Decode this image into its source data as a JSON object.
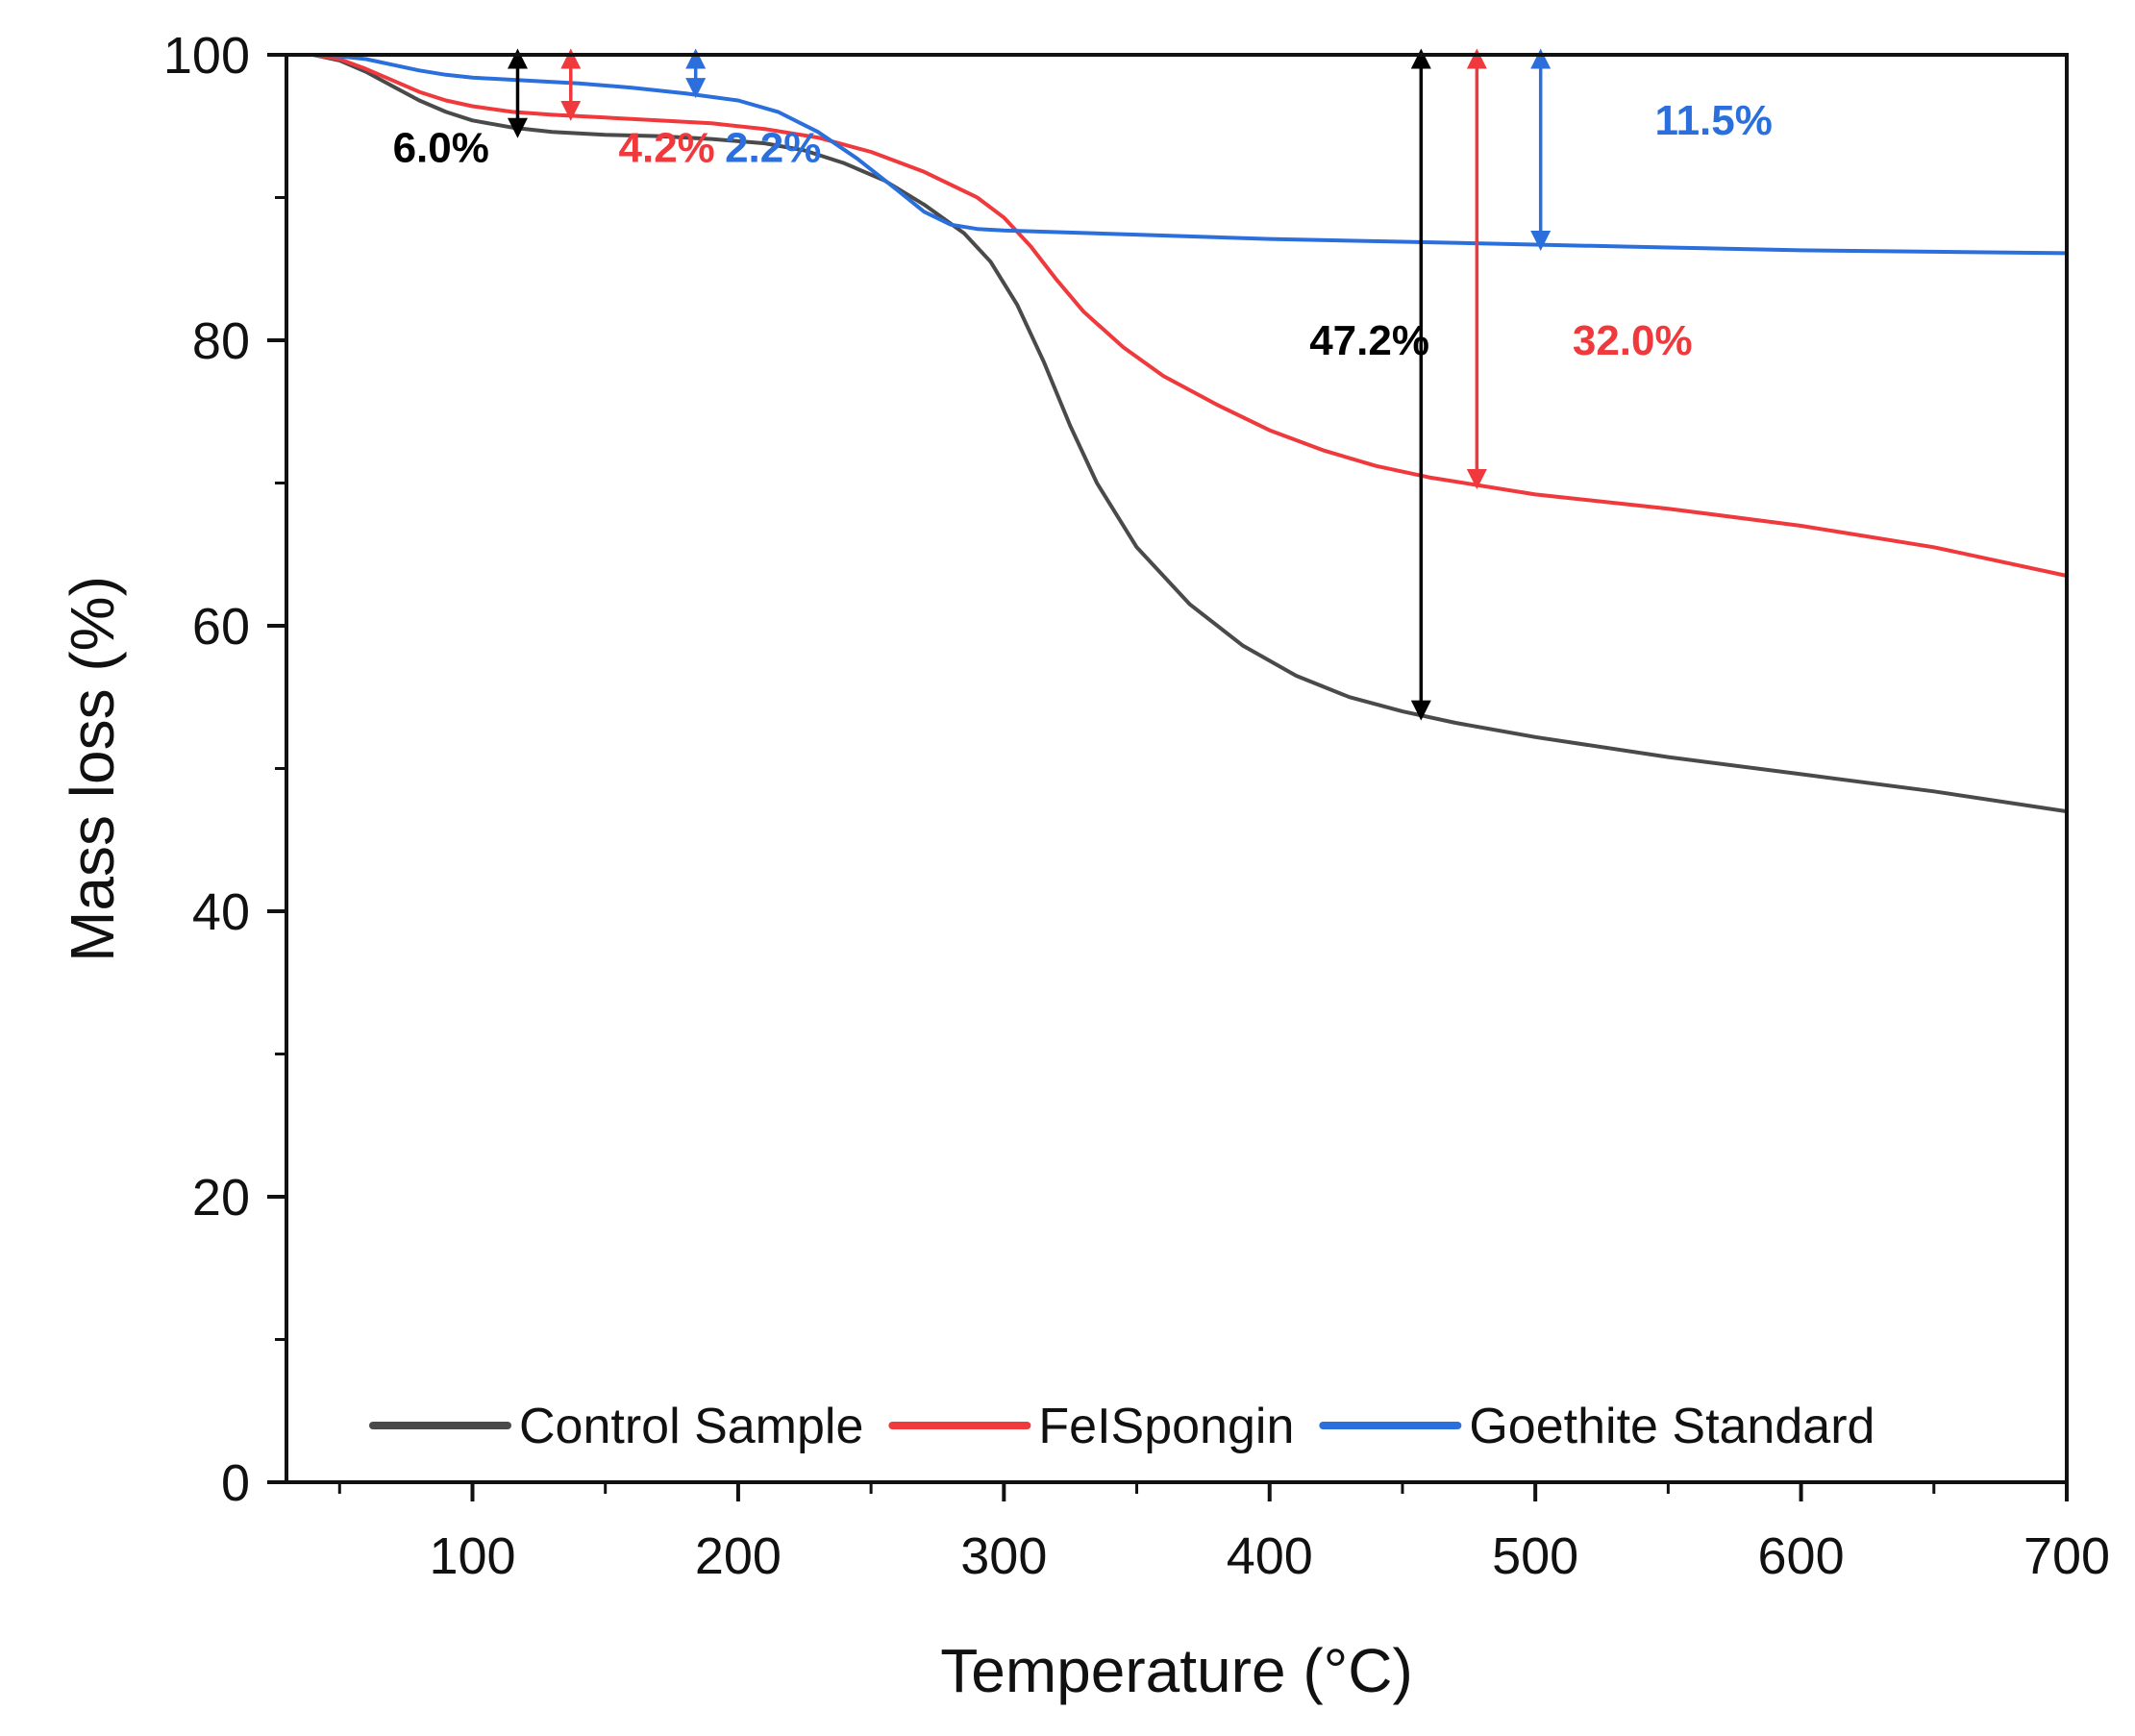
{
  "chart_data": {
    "type": "line",
    "title": "",
    "xlabel": "Temperature (°C)",
    "ylabel": "Mass loss (%)",
    "xlim": [
      30,
      700
    ],
    "ylim": [
      0,
      100
    ],
    "x_ticks": [
      100,
      200,
      300,
      400,
      500,
      600,
      700
    ],
    "x_minor_ticks": [
      50,
      150,
      250,
      350,
      450,
      550,
      650
    ],
    "y_ticks": [
      0,
      20,
      40,
      60,
      80,
      100
    ],
    "y_minor_ticks": [
      10,
      30,
      50,
      70,
      90
    ],
    "legend_position": "bottom",
    "series": [
      {
        "name": "Control Sample",
        "color": "#4a4a4a",
        "points": [
          [
            30,
            100
          ],
          [
            40,
            100
          ],
          [
            50,
            99.6
          ],
          [
            60,
            98.8
          ],
          [
            70,
            97.8
          ],
          [
            80,
            96.8
          ],
          [
            90,
            96.0
          ],
          [
            100,
            95.4
          ],
          [
            115,
            94.9
          ],
          [
            130,
            94.6
          ],
          [
            150,
            94.4
          ],
          [
            170,
            94.3
          ],
          [
            190,
            94.1
          ],
          [
            210,
            93.8
          ],
          [
            225,
            93.3
          ],
          [
            240,
            92.4
          ],
          [
            255,
            91.2
          ],
          [
            270,
            89.5
          ],
          [
            285,
            87.5
          ],
          [
            295,
            85.5
          ],
          [
            305,
            82.5
          ],
          [
            315,
            78.5
          ],
          [
            325,
            74.0
          ],
          [
            335,
            70.0
          ],
          [
            350,
            65.5
          ],
          [
            370,
            61.5
          ],
          [
            390,
            58.6
          ],
          [
            410,
            56.5
          ],
          [
            430,
            55.0
          ],
          [
            450,
            54.0
          ],
          [
            470,
            53.2
          ],
          [
            500,
            52.2
          ],
          [
            550,
            50.8
          ],
          [
            600,
            49.6
          ],
          [
            650,
            48.4
          ],
          [
            700,
            47.0
          ]
        ]
      },
      {
        "name": "FeISpongin",
        "color": "#f0393c",
        "points": [
          [
            30,
            100
          ],
          [
            40,
            100
          ],
          [
            50,
            99.7
          ],
          [
            60,
            99.0
          ],
          [
            70,
            98.2
          ],
          [
            80,
            97.4
          ],
          [
            90,
            96.8
          ],
          [
            100,
            96.4
          ],
          [
            115,
            96.0
          ],
          [
            130,
            95.8
          ],
          [
            150,
            95.6
          ],
          [
            170,
            95.4
          ],
          [
            190,
            95.2
          ],
          [
            210,
            94.8
          ],
          [
            230,
            94.2
          ],
          [
            250,
            93.2
          ],
          [
            270,
            91.8
          ],
          [
            290,
            90.0
          ],
          [
            300,
            88.6
          ],
          [
            310,
            86.6
          ],
          [
            320,
            84.2
          ],
          [
            330,
            82.0
          ],
          [
            345,
            79.5
          ],
          [
            360,
            77.5
          ],
          [
            380,
            75.5
          ],
          [
            400,
            73.7
          ],
          [
            420,
            72.3
          ],
          [
            440,
            71.2
          ],
          [
            460,
            70.4
          ],
          [
            480,
            69.8
          ],
          [
            500,
            69.2
          ],
          [
            550,
            68.2
          ],
          [
            600,
            67.0
          ],
          [
            650,
            65.5
          ],
          [
            700,
            63.5
          ]
        ]
      },
      {
        "name": "Goethite Standard",
        "color": "#2a6fdb",
        "points": [
          [
            30,
            100
          ],
          [
            40,
            100
          ],
          [
            50,
            99.9
          ],
          [
            60,
            99.7
          ],
          [
            70,
            99.3
          ],
          [
            80,
            98.9
          ],
          [
            90,
            98.6
          ],
          [
            100,
            98.4
          ],
          [
            120,
            98.2
          ],
          [
            140,
            98.0
          ],
          [
            160,
            97.7
          ],
          [
            180,
            97.3
          ],
          [
            200,
            96.8
          ],
          [
            215,
            96.0
          ],
          [
            230,
            94.6
          ],
          [
            245,
            92.7
          ],
          [
            260,
            90.5
          ],
          [
            270,
            89.0
          ],
          [
            280,
            88.1
          ],
          [
            290,
            87.8
          ],
          [
            300,
            87.7
          ],
          [
            350,
            87.4
          ],
          [
            400,
            87.1
          ],
          [
            450,
            86.9
          ],
          [
            500,
            86.7
          ],
          [
            550,
            86.5
          ],
          [
            600,
            86.3
          ],
          [
            650,
            86.2
          ],
          [
            700,
            86.1
          ]
        ]
      }
    ],
    "annotations": [
      {
        "label": "6.0%",
        "color": "#000000",
        "x": 117,
        "y_from": 100,
        "y_to": 94.6,
        "label_x": 70,
        "label_y": 92.5
      },
      {
        "label": "4.2%",
        "color": "#f0393c",
        "x": 137,
        "y_from": 100,
        "y_to": 95.8,
        "label_x": 155,
        "label_y": 92.5
      },
      {
        "label": "2.2%",
        "color": "#2a6fdb",
        "x": 184,
        "y_from": 100,
        "y_to": 97.4,
        "label_x": 195,
        "label_y": 92.5
      },
      {
        "label": "47.2%",
        "color": "#000000",
        "x": 457,
        "y_from": 100,
        "y_to": 53.8,
        "label_x": 415,
        "label_y": 79.0
      },
      {
        "label": "32.0%",
        "color": "#f0393c",
        "x": 478,
        "y_from": 100,
        "y_to": 70.0,
        "label_x": 514,
        "label_y": 79.0
      },
      {
        "label": "11.5%",
        "color": "#2a6fdb",
        "x": 502,
        "y_from": 100,
        "y_to": 86.7,
        "label_x": 545,
        "label_y": 94.4
      }
    ]
  }
}
